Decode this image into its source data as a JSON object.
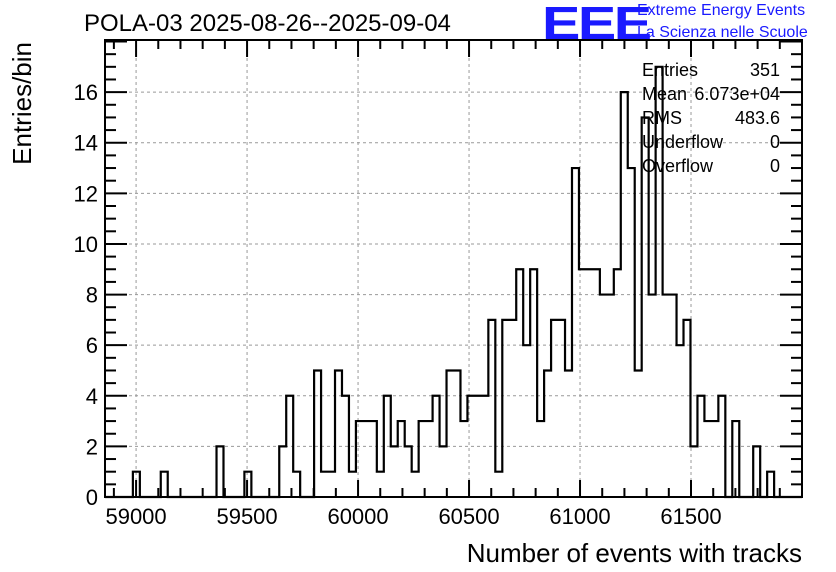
{
  "title": "POLA-03 2025-08-26--2025-09-04",
  "logo": {
    "text": "EEE",
    "line1": "Extreme Energy Events",
    "line2": "La Scienza nelle Scuole",
    "color": "#1a1aff"
  },
  "stats": [
    {
      "label": "Entries",
      "value": "351"
    },
    {
      "label": "Mean",
      "value": "6.073e+04"
    },
    {
      "label": "RMS",
      "value": "483.6"
    },
    {
      "label": "Underflow",
      "value": "0"
    },
    {
      "label": "Overflow",
      "value": "0"
    }
  ],
  "chart_data": {
    "type": "bar",
    "style": "step-histogram",
    "title": "POLA-03 2025-08-26--2025-09-04",
    "xlabel": "Number of events with tracks",
    "ylabel": "Entries/bin",
    "xlim": [
      58860,
      62000
    ],
    "ylim": [
      0,
      18.06
    ],
    "grid": true,
    "x_ticks": [
      59000,
      59500,
      60000,
      60500,
      61000,
      61500
    ],
    "y_ticks": [
      0,
      2,
      4,
      6,
      8,
      10,
      12,
      14,
      16
    ],
    "bins": 100,
    "values": [
      0,
      0,
      0,
      0,
      1,
      0,
      0,
      0,
      1,
      0,
      0,
      0,
      0,
      0,
      0,
      0,
      2,
      0,
      0,
      0,
      1,
      0,
      0,
      0,
      0,
      2,
      4,
      1,
      0,
      0,
      5,
      1,
      1,
      5,
      4,
      1,
      3,
      3,
      3,
      1,
      4,
      2,
      3,
      2,
      1,
      3,
      3,
      4,
      2,
      5,
      5,
      3,
      4,
      4,
      4,
      7,
      1,
      7,
      7,
      9,
      6,
      9,
      3,
      5,
      7,
      7,
      5,
      13,
      9,
      9,
      9,
      8,
      8,
      9,
      16,
      13,
      5,
      15,
      8,
      17,
      8,
      8,
      6,
      7,
      2,
      4,
      3,
      3,
      4,
      0,
      3,
      0,
      0,
      2,
      0,
      1,
      0,
      0,
      0,
      0
    ]
  }
}
